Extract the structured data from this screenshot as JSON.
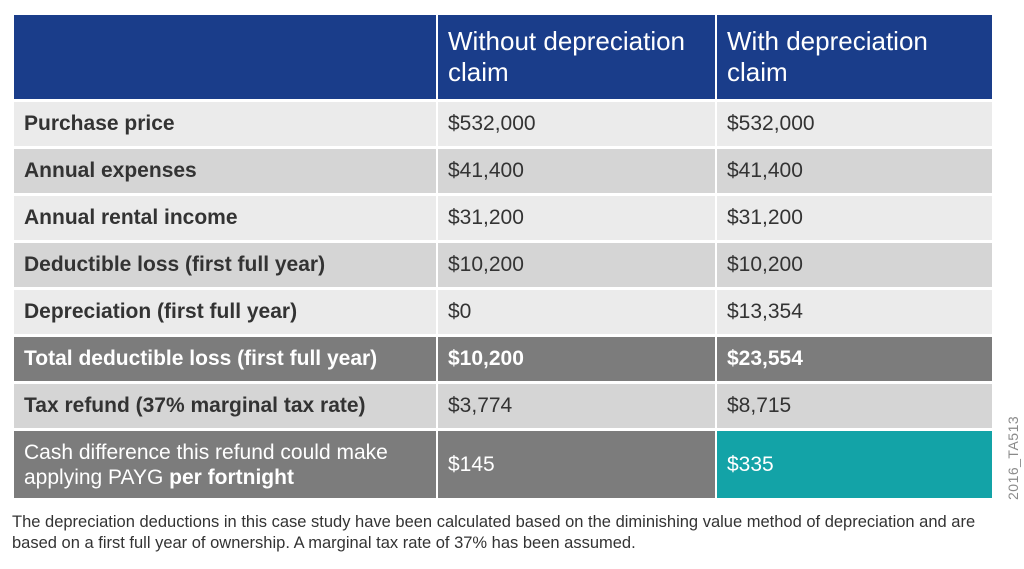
{
  "table": {
    "headers": [
      "",
      "Without depreciation claim",
      "With depreciation claim"
    ],
    "rows": [
      {
        "label": "Purchase price",
        "without": "$532,000",
        "with": "$532,000"
      },
      {
        "label": "Annual expenses",
        "without": "$41,400",
        "with": "$41,400"
      },
      {
        "label": "Annual rental income",
        "without": "$31,200",
        "with": "$31,200"
      },
      {
        "label": "Deductible loss (first full year)",
        "without": "$10,200",
        "with": "$10,200"
      },
      {
        "label": "Depreciation (first full year)",
        "without": "$0",
        "with": "$13,354"
      },
      {
        "label": "Total deductible loss (first full year)",
        "without": "$10,200",
        "with": "$23,554"
      },
      {
        "label": "Tax refund (37% marginal tax rate)",
        "without": "$3,774",
        "with": "$8,715"
      }
    ],
    "last_row": {
      "label_prefix": "Cash difference this refund could make applying PAYG ",
      "label_bold": "per fortnight",
      "without": "$145",
      "with": "$335"
    }
  },
  "side_code": "2016_TA513",
  "footnote": "The depreciation deductions in this case study have been calculated based on the diminishing value method of depreciation and are based on a first full year of ownership. A marginal tax rate of 37% has been assumed.",
  "colors": {
    "header": "#1a3d8a",
    "row_light": "#ebebeb",
    "row_mid": "#d5d5d5",
    "row_dark": "#7c7c7c",
    "accent": "#13a3a7"
  }
}
